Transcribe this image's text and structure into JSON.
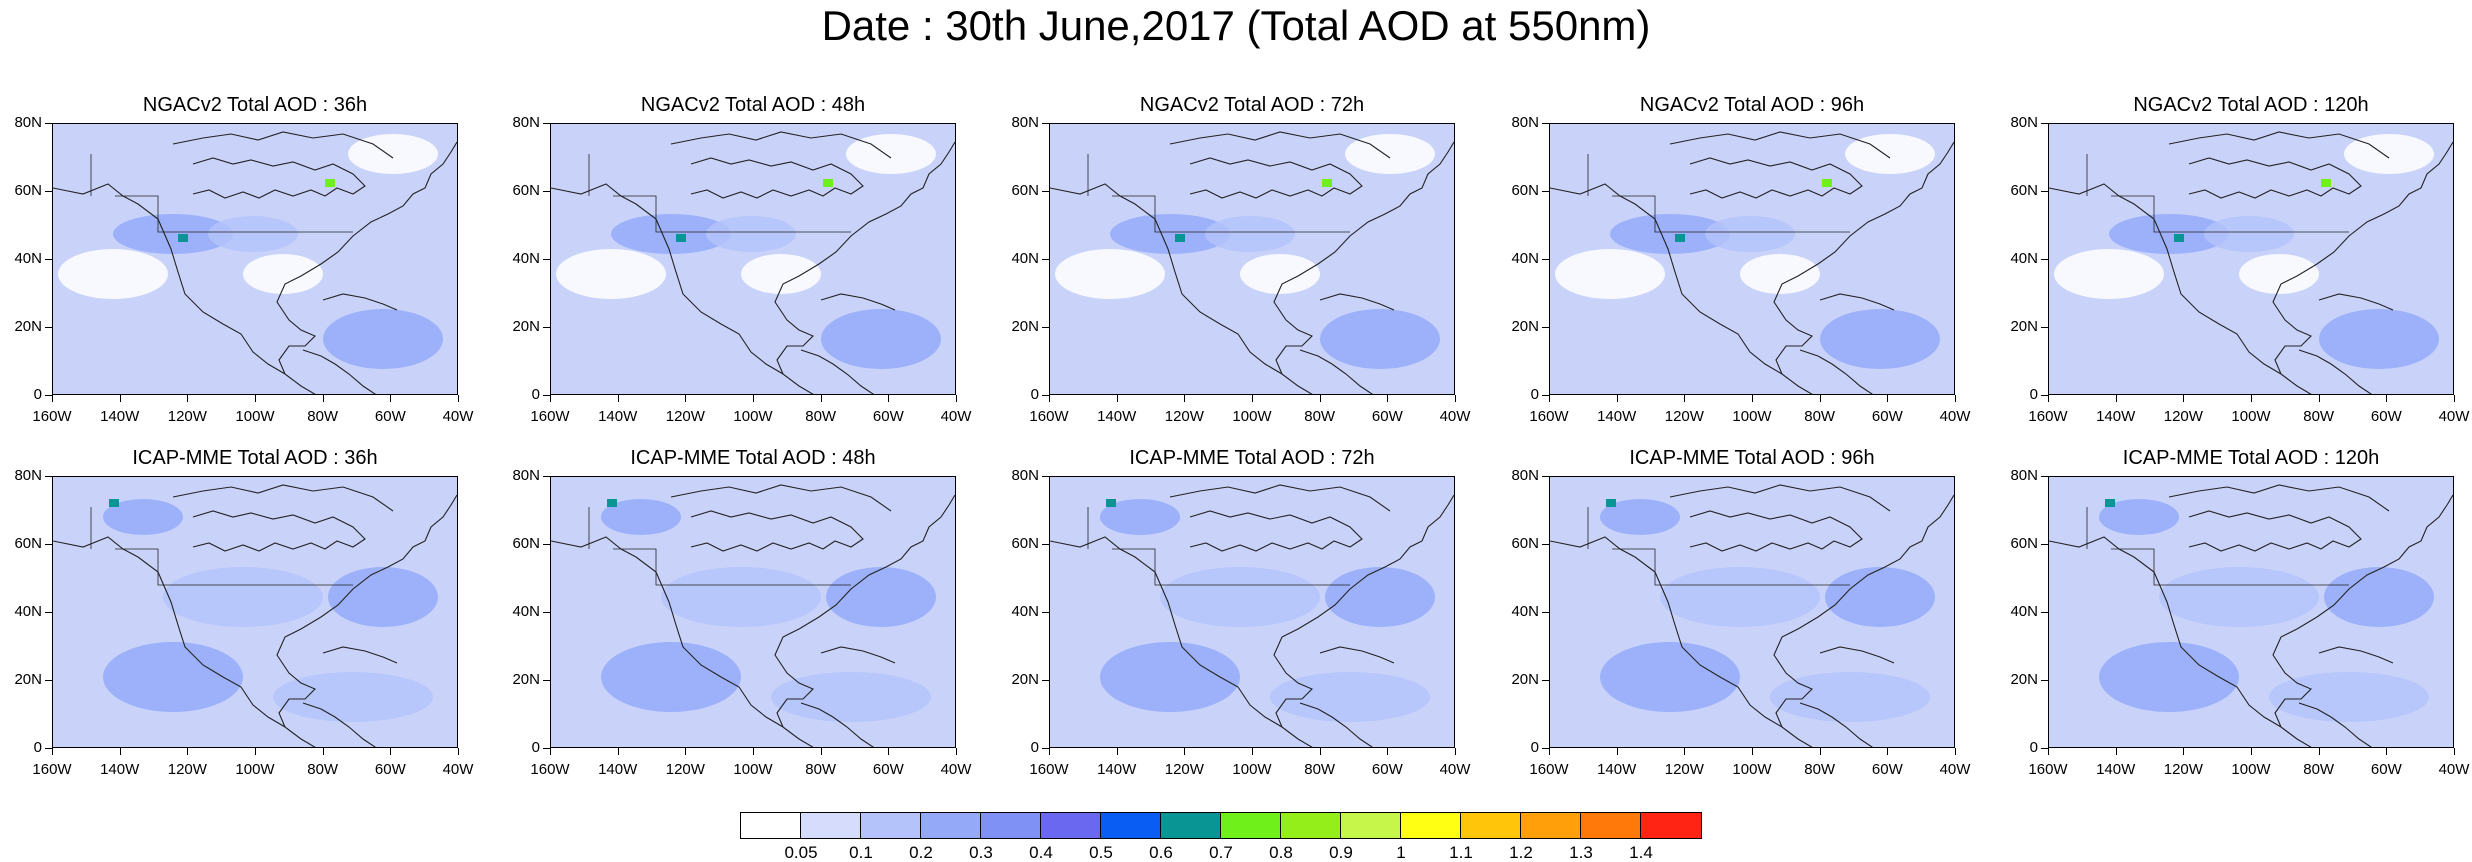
{
  "title": "Date : 30th June,2017 (Total AOD at 550nm)",
  "panels": [
    {
      "title": "NGACv2 Total AOD : 36h"
    },
    {
      "title": "NGACv2 Total AOD : 48h"
    },
    {
      "title": "NGACv2 Total AOD : 72h"
    },
    {
      "title": "NGACv2 Total AOD : 96h"
    },
    {
      "title": "NGACv2 Total AOD : 120h"
    },
    {
      "title": "ICAP-MME Total AOD : 36h"
    },
    {
      "title": "ICAP-MME Total AOD : 48h"
    },
    {
      "title": "ICAP-MME Total AOD : 72h"
    },
    {
      "title": "ICAP-MME Total AOD : 96h"
    },
    {
      "title": "ICAP-MME Total AOD : 120h"
    }
  ],
  "axes": {
    "lat_labels": [
      "80N",
      "60N",
      "40N",
      "20N",
      "0"
    ],
    "lon_labels": [
      "160W",
      "140W",
      "120W",
      "100W",
      "80W",
      "60W",
      "40W"
    ]
  },
  "colorbar": {
    "labels": [
      "0.05",
      "0.1",
      "0.2",
      "0.3",
      "0.4",
      "0.5",
      "0.6",
      "0.7",
      "0.8",
      "0.9",
      "1",
      "1.1",
      "1.2",
      "1.3",
      "1.4"
    ],
    "colors": [
      "#ffffff",
      "#d6ddfc",
      "#b4c3fa",
      "#94aaf8",
      "#7f91f5",
      "#6a68f0",
      "#0a5df2",
      "#0a9595",
      "#6ff01a",
      "#94ee1a",
      "#c6f64a",
      "#ffff14",
      "#ffc50a",
      "#ff9f0a",
      "#ff780a",
      "#ff2414"
    ]
  }
}
